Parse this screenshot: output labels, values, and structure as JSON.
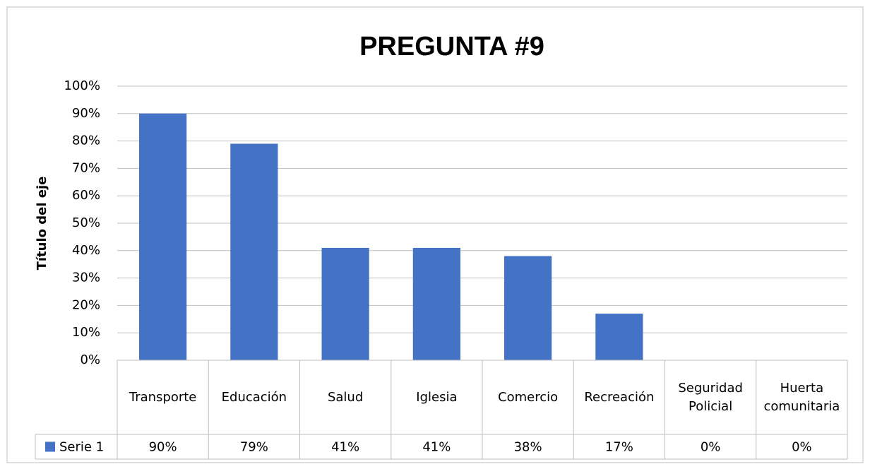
{
  "chart_data": {
    "type": "bar",
    "title": "PREGUNTA #9",
    "y_axis_label": "Título del eje",
    "categories": [
      "Transporte",
      "Educación",
      "Salud",
      "Iglesia",
      "Comercio",
      "Recreación",
      "Seguridad Policial",
      "Huerta comunitaria"
    ],
    "series": [
      {
        "name": "Serie 1",
        "color": "#4472c4",
        "values": [
          90,
          79,
          41,
          41,
          38,
          17,
          0,
          0
        ],
        "value_labels": [
          "90%",
          "79%",
          "41%",
          "41%",
          "38%",
          "17%",
          "0%",
          "0%"
        ]
      }
    ],
    "ylim": [
      0,
      100
    ],
    "yticks": [
      {
        "value": 0,
        "label": "0%"
      },
      {
        "value": 10,
        "label": "10%"
      },
      {
        "value": 20,
        "label": "20%"
      },
      {
        "value": 30,
        "label": "30%"
      },
      {
        "value": 40,
        "label": "40%"
      },
      {
        "value": 50,
        "label": "50%"
      },
      {
        "value": 60,
        "label": "60%"
      },
      {
        "value": 70,
        "label": "70%"
      },
      {
        "value": 80,
        "label": "80%"
      },
      {
        "value": 90,
        "label": "90%"
      },
      {
        "value": 100,
        "label": "100%"
      }
    ],
    "grid": true,
    "data_table": true
  }
}
